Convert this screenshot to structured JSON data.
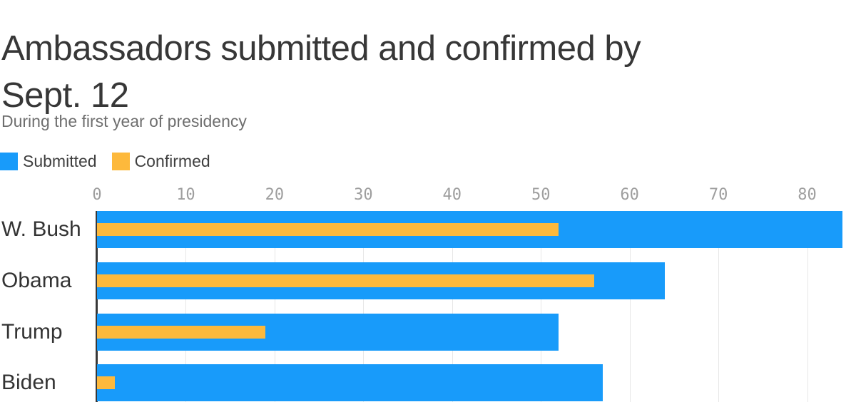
{
  "header": {
    "title_line1": "Ambassadors submitted and confirmed by",
    "title_line2": "Sept. 12",
    "subtitle": "During the first year of presidency"
  },
  "chart_data": {
    "type": "bar",
    "orientation": "horizontal",
    "title": "Ambassadors submitted and confirmed by Sept. 12",
    "subtitle": "During the first year of presidency",
    "categories": [
      "W. Bush",
      "Obama",
      "Trump",
      "Biden"
    ],
    "series": [
      {
        "name": "Submitted",
        "color": "#189bfa",
        "values": [
          84,
          64,
          52,
          57
        ]
      },
      {
        "name": "Confirmed",
        "color": "#fdb93c",
        "values": [
          52,
          56,
          19,
          2
        ]
      }
    ],
    "xlabel": "",
    "ylabel": "",
    "xlim": [
      0,
      85.5
    ],
    "xticks": [
      0,
      10,
      20,
      30,
      40,
      50,
      60,
      70,
      80
    ],
    "grid": true,
    "legend_position": "top-left",
    "colors": {
      "grid": "#e7e7e7",
      "axis_line": "#383838",
      "tick_label": "#9e9e9e",
      "category_label": "#333333",
      "title": "#373737",
      "subtitle": "#6e6e6e"
    }
  }
}
